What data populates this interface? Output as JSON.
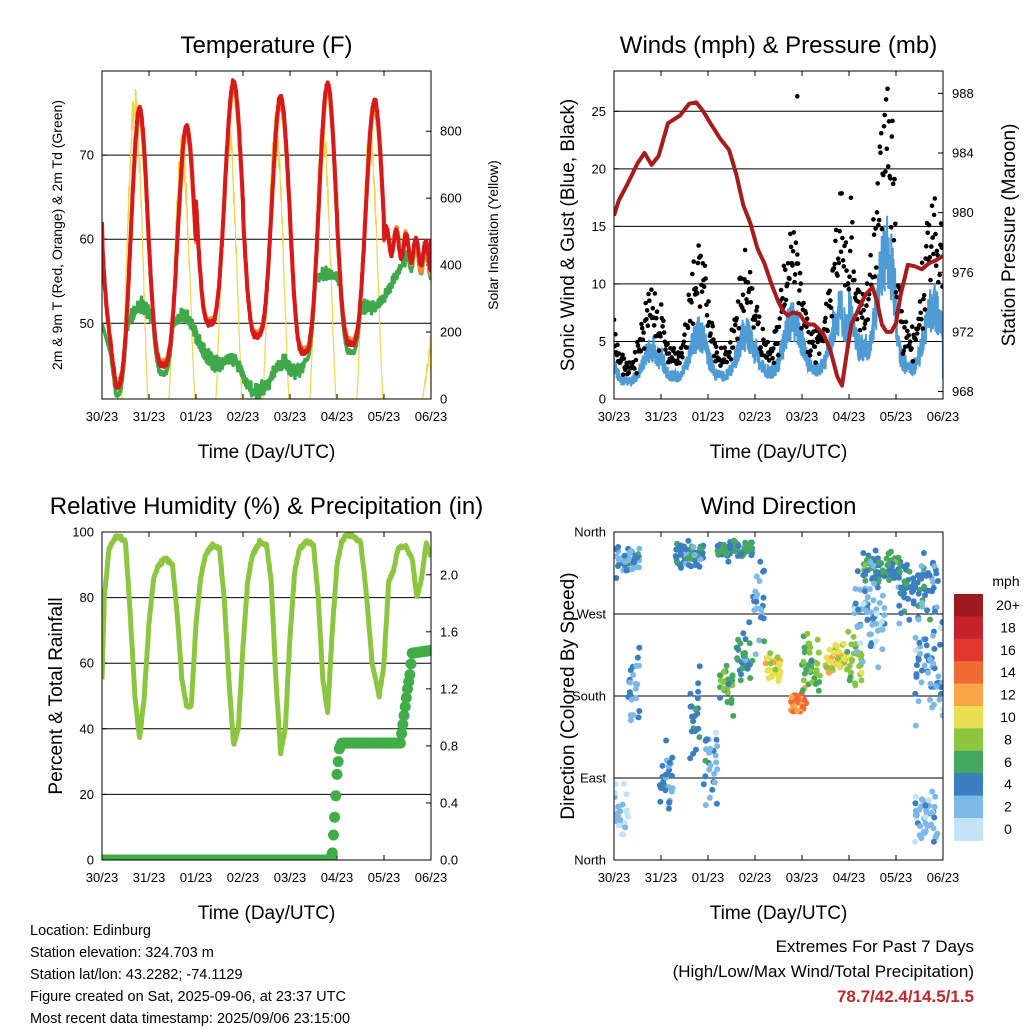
{
  "colors": {
    "t2m": "#d7191c",
    "t9m": "#f4892a",
    "td": "#3fa84a",
    "solar": "#f2d54a",
    "gust": "#000000",
    "wind": "#4f9bd4",
    "pressure": "#a71d1d",
    "rh": "#8cc640",
    "rain": "#41ad49",
    "grid": "#000000",
    "extremes": "#c0272d"
  },
  "chart_data": [
    {
      "type": "line",
      "title": "Temperature (F)",
      "xlabel": "Time (Day/UTC)",
      "ylabel": "2m & 9m T (Red, Orange) & 2m Td (Green)",
      "y2label": "Solar Insolation (Yellow)",
      "x_ticks": [
        "30/23",
        "31/23",
        "01/23",
        "02/23",
        "03/23",
        "04/23",
        "05/23",
        "06/23"
      ],
      "xlim": [
        0,
        7
      ],
      "ylim": [
        41,
        80
      ],
      "y_ticks": [
        50,
        60,
        70
      ],
      "y2lim": [
        0,
        980
      ],
      "y2_ticks": [
        0,
        200,
        400,
        600,
        800
      ],
      "grid": "horizontal",
      "daily_max_temp": [
        75.5,
        73.5,
        78.7,
        77,
        78.5,
        76.5
      ],
      "daily_min_temp": [
        42.4,
        45,
        50,
        48.5,
        46.5,
        47.5,
        57.5
      ],
      "series": [
        {
          "name": "2m T",
          "color_key": "t2m"
        },
        {
          "name": "9m T",
          "color_key": "t9m"
        },
        {
          "name": "2m Td",
          "color_key": "td"
        },
        {
          "name": "Solar Insolation",
          "color_key": "solar",
          "daily_peak": [
            960,
            790,
            860,
            860,
            860,
            830,
            220
          ]
        }
      ]
    },
    {
      "type": "line",
      "title": "Winds (mph) & Pressure (mb)",
      "xlabel": "Time (Day/UTC)",
      "ylabel": "Sonic Wind & Gust (Blue, Black)",
      "y2label": "Station Pressure (Maroon)",
      "x_ticks": [
        "30/23",
        "31/23",
        "01/23",
        "02/23",
        "03/23",
        "04/23",
        "05/23",
        "06/23"
      ],
      "xlim": [
        0,
        7
      ],
      "ylim": [
        0,
        28.5
      ],
      "y_ticks": [
        0,
        5,
        10,
        15,
        20,
        25
      ],
      "y2lim": [
        967.5,
        989.5
      ],
      "y2_ticks": [
        968,
        972,
        976,
        980,
        984,
        988
      ],
      "grid": "horizontal",
      "pressure_series": {
        "name": "Station Pressure",
        "x": [
          0,
          0.1,
          0.3,
          0.5,
          0.65,
          0.8,
          0.95,
          1.15,
          1.4,
          1.6,
          1.75,
          1.9,
          2.05,
          2.25,
          2.45,
          2.6,
          2.75,
          2.9,
          3.05,
          3.2,
          3.35,
          3.5,
          3.6,
          3.7,
          3.8,
          3.95,
          4.05,
          4.15,
          4.25,
          4.35,
          4.45,
          4.6,
          4.75,
          4.85,
          4.95,
          5.05,
          5.2,
          5.35,
          5.5,
          5.6,
          5.7,
          5.8,
          5.9,
          6.0,
          6.1,
          6.25,
          6.4,
          6.55,
          6.7,
          6.85,
          7.0
        ],
        "values": [
          979.8,
          980.8,
          982.0,
          983.3,
          984.0,
          983.2,
          983.8,
          986.0,
          986.5,
          987.3,
          987.4,
          986.8,
          986.0,
          985.0,
          984.2,
          982.6,
          980.5,
          979.3,
          977.6,
          976.6,
          975.2,
          974.0,
          973.4,
          973.1,
          973.3,
          973.2,
          972.7,
          972.5,
          972.5,
          972.2,
          971.9,
          970.8,
          969.0,
          968.4,
          970.5,
          972.5,
          973.5,
          974.5,
          975.0,
          974.0,
          972.5,
          972.0,
          972.0,
          972.6,
          974.5,
          976.5,
          976.4,
          976.2,
          976.6,
          976.8,
          977.1
        ]
      },
      "gust_peak": 26.3,
      "series": [
        {
          "name": "Sonic Wind",
          "color_key": "wind"
        },
        {
          "name": "Gust",
          "color_key": "gust"
        }
      ]
    },
    {
      "type": "line",
      "title": "Relative Humidity (%) & Precipitation (in)",
      "xlabel": "Time (Day/UTC)",
      "ylabel": "Percent & Total Rainfall",
      "x_ticks": [
        "30/23",
        "31/23",
        "01/23",
        "02/23",
        "03/23",
        "04/23",
        "05/23",
        "06/23"
      ],
      "xlim": [
        0,
        7
      ],
      "ylim": [
        0,
        100
      ],
      "y_ticks": [
        0,
        20,
        40,
        60,
        80,
        100
      ],
      "y2lim": [
        0,
        2.3
      ],
      "y2_ticks": [
        "0.0",
        "0.4",
        "0.8",
        "1.2",
        "1.6",
        "2.0"
      ],
      "grid": "horizontal",
      "rh_series": {
        "name": "Relative Humidity",
        "x": [
          0,
          0.05,
          0.15,
          0.3,
          0.5,
          0.6,
          0.7,
          0.8,
          0.9,
          1.0,
          1.1,
          1.2,
          1.35,
          1.5,
          1.6,
          1.7,
          1.8,
          1.9,
          2.0,
          2.1,
          2.2,
          2.35,
          2.5,
          2.6,
          2.7,
          2.8,
          2.9,
          3.0,
          3.1,
          3.2,
          3.35,
          3.5,
          3.6,
          3.7,
          3.8,
          3.9,
          4.0,
          4.1,
          4.2,
          4.35,
          4.5,
          4.6,
          4.7,
          4.8,
          4.9,
          5.0,
          5.1,
          5.2,
          5.3,
          5.5,
          5.6,
          5.75,
          5.9,
          6.0,
          6.1,
          6.2,
          6.3,
          6.45,
          6.6,
          6.7,
          6.8,
          6.9,
          7.0
        ],
        "values": [
          55,
          80,
          95,
          99,
          97,
          75,
          50,
          37,
          50,
          72,
          86,
          90,
          92,
          90,
          75,
          55,
          47,
          47,
          72,
          86,
          93,
          96,
          95,
          80,
          55,
          35,
          40,
          65,
          85,
          93,
          97,
          96,
          85,
          55,
          33,
          40,
          68,
          88,
          95,
          97,
          96,
          80,
          55,
          45,
          70,
          90,
          97,
          99,
          99,
          97,
          85,
          60,
          50,
          60,
          85,
          88,
          95,
          96,
          92,
          80,
          86,
          97,
          92
        ]
      },
      "rain_series": {
        "name": "Total Rainfall",
        "x": [
          0,
          4.85,
          4.9,
          4.95,
          5.0,
          5.05,
          5.1,
          6.35,
          6.38,
          6.42,
          6.46,
          6.5,
          6.55,
          6.6,
          7.0
        ],
        "values": [
          0,
          0,
          0.05,
          0.3,
          0.6,
          0.78,
          0.82,
          0.82,
          0.9,
          1.0,
          1.1,
          1.2,
          1.3,
          1.45,
          1.47
        ]
      }
    },
    {
      "type": "scatter",
      "title": "Wind Direction",
      "xlabel": "Time (Day/UTC)",
      "ylabel": "Direction (Colored By Speed)",
      "x_ticks": [
        "30/23",
        "31/23",
        "01/23",
        "02/23",
        "03/23",
        "04/23",
        "05/23",
        "06/23"
      ],
      "xlim": [
        0,
        7
      ],
      "y_ticks": [
        "North",
        "West",
        "South",
        "East",
        "North"
      ],
      "ylim": [
        360,
        0
      ],
      "grid": "horizontal",
      "colorbar": {
        "unit": "mph",
        "labels": [
          "20+",
          "18",
          "16",
          "14",
          "12",
          "10",
          "8",
          "6",
          "4",
          "2",
          "0"
        ],
        "colors": [
          "#9b1b1e",
          "#c4232b",
          "#e0382d",
          "#f06a33",
          "#f9a548",
          "#e8e052",
          "#8cc640",
          "#46a860",
          "#3b7fc0",
          "#7db9e6",
          "#c2e4f6"
        ]
      }
    }
  ],
  "footer": {
    "location": "Location: Edinburg",
    "elevation": "Station elevation: 324.703 m",
    "latlon": "Station lat/lon: 43.2282; -74.1129",
    "created": "Figure created on Sat, 2025-09-06, at 23:37 UTC",
    "recent": "Most recent data timestamp: 2025/09/06 23:15:00"
  },
  "extremes": {
    "title": "Extremes For Past 7 Days",
    "subtitle": "(High/Low/Max Wind/Total Precipitation)",
    "values": "78.7/42.4/14.5/1.5"
  }
}
